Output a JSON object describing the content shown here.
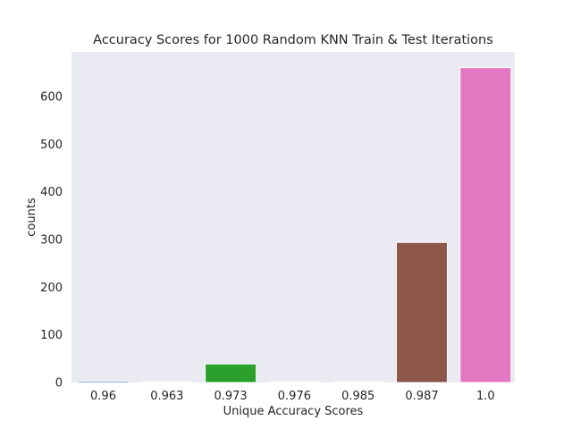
{
  "chart_data": {
    "type": "bar",
    "title": "Accuracy Scores for 1000 Random KNN Train & Test Iterations",
    "xlabel": "Unique Accuracy Scores",
    "ylabel": "counts",
    "categories": [
      "0.96",
      "0.963",
      "0.973",
      "0.976",
      "0.985",
      "0.987",
      "1.0"
    ],
    "values": [
      3,
      1,
      39,
      1,
      1,
      294,
      661
    ],
    "colors": [
      "#1f77b4",
      "#ff7f0e",
      "#2ca02c",
      "#d62728",
      "#9467bd",
      "#8c564b",
      "#e377c2"
    ],
    "ylim": [
      0,
      694
    ],
    "yticks": [
      0,
      100,
      200,
      300,
      400,
      500,
      600
    ],
    "grid": false,
    "legend": "none",
    "background": "#eaeaf2"
  }
}
